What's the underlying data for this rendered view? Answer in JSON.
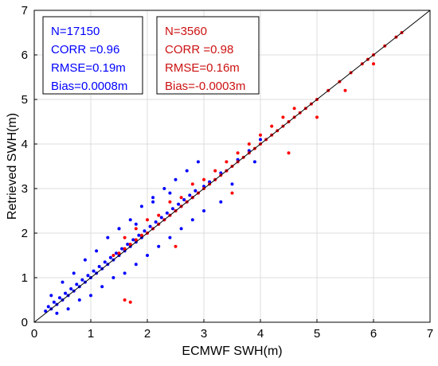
{
  "chart_data": {
    "type": "scatter",
    "title": "",
    "xlabel": "ECMWF SWH(m)",
    "ylabel": "Retrieved SWH(m)",
    "xlim": [
      0,
      7
    ],
    "ylim": [
      0,
      7
    ],
    "xticks": [
      0,
      1,
      2,
      3,
      4,
      5,
      6,
      7
    ],
    "yticks": [
      0,
      1,
      2,
      3,
      4,
      5,
      6,
      7
    ],
    "grid": true,
    "reference_line": {
      "x": [
        0,
        7
      ],
      "y": [
        0,
        7
      ],
      "color": "#000000"
    },
    "series": [
      {
        "color": "#0000ff",
        "stats": [
          "N=17150",
          "CORR =0.96",
          "RMSE=0.19m",
          "Bias=0.0008m"
        ],
        "x": [
          0.2,
          0.25,
          0.3,
          0.35,
          0.4,
          0.45,
          0.5,
          0.55,
          0.6,
          0.65,
          0.7,
          0.75,
          0.8,
          0.85,
          0.9,
          0.95,
          1.0,
          1.05,
          1.1,
          1.15,
          1.2,
          1.25,
          1.3,
          1.35,
          1.4,
          1.45,
          1.5,
          1.55,
          1.6,
          1.65,
          1.7,
          1.75,
          1.8,
          1.85,
          1.9,
          1.95,
          2.0,
          2.05,
          2.1,
          2.15,
          2.2,
          2.25,
          2.3,
          2.35,
          2.4,
          2.45,
          2.5,
          2.55,
          2.6,
          2.65,
          2.7,
          2.75,
          2.8,
          2.85,
          2.9,
          3.0,
          3.1,
          3.2,
          3.3,
          3.4,
          3.6,
          3.8,
          4.0,
          0.3,
          0.5,
          0.7,
          0.9,
          1.1,
          1.3,
          1.5,
          1.7,
          1.9,
          2.1,
          2.3,
          2.5,
          2.7,
          2.9,
          0.4,
          0.6,
          0.8,
          1.0,
          1.2,
          1.4,
          1.6,
          1.8,
          2.0,
          2.2,
          2.4,
          2.6,
          2.8,
          3.0,
          1.5,
          1.8,
          2.1,
          2.4,
          3.3,
          3.5,
          3.9
        ],
        "y": [
          0.25,
          0.35,
          0.3,
          0.45,
          0.4,
          0.55,
          0.5,
          0.65,
          0.6,
          0.75,
          0.7,
          0.85,
          0.8,
          0.95,
          0.9,
          1.05,
          1.0,
          1.15,
          1.1,
          1.25,
          1.2,
          1.35,
          1.3,
          1.45,
          1.4,
          1.55,
          1.5,
          1.65,
          1.6,
          1.75,
          1.7,
          1.85,
          1.8,
          1.95,
          1.9,
          2.05,
          2.0,
          2.15,
          2.1,
          2.25,
          2.2,
          2.35,
          2.3,
          2.45,
          2.4,
          2.55,
          2.5,
          2.65,
          2.6,
          2.75,
          2.7,
          2.85,
          2.8,
          2.95,
          2.9,
          3.05,
          3.15,
          3.2,
          3.35,
          3.4,
          3.65,
          3.85,
          4.1,
          0.6,
          0.9,
          1.1,
          1.4,
          1.6,
          1.9,
          2.1,
          2.3,
          2.6,
          2.8,
          3.0,
          3.2,
          3.4,
          3.6,
          0.2,
          0.3,
          0.5,
          0.6,
          0.8,
          1.0,
          1.1,
          1.3,
          1.5,
          1.7,
          1.9,
          2.1,
          2.3,
          2.5,
          2.1,
          2.2,
          2.7,
          2.9,
          2.7,
          3.1,
          3.6
        ]
      },
      {
        "color": "#ff0000",
        "stats": [
          "N=3560",
          "CORR =0.98",
          "RMSE=0.16m",
          "Bias=-0.0003m"
        ],
        "x": [
          1.4,
          1.5,
          1.6,
          1.7,
          1.8,
          1.9,
          2.0,
          2.1,
          2.2,
          2.3,
          2.4,
          2.5,
          2.6,
          2.7,
          2.8,
          2.9,
          3.0,
          3.1,
          3.2,
          3.3,
          3.4,
          3.5,
          3.6,
          3.7,
          3.8,
          3.9,
          4.0,
          4.1,
          4.2,
          4.3,
          4.4,
          4.5,
          4.6,
          4.7,
          4.8,
          4.9,
          5.0,
          5.2,
          5.4,
          5.6,
          5.8,
          5.9,
          6.0,
          6.2,
          6.4,
          6.5,
          1.6,
          1.8,
          2.0,
          2.2,
          2.4,
          2.6,
          2.8,
          3.0,
          3.2,
          3.4,
          3.6,
          3.8,
          4.0,
          4.2,
          4.4,
          4.6,
          5.0,
          5.5,
          6.0,
          1.6,
          1.7,
          2.5,
          3.5,
          4.5
        ],
        "y": [
          1.5,
          1.55,
          1.65,
          1.75,
          1.85,
          1.95,
          2.0,
          2.1,
          2.2,
          2.3,
          2.4,
          2.5,
          2.6,
          2.7,
          2.8,
          2.9,
          3.0,
          3.1,
          3.2,
          3.3,
          3.4,
          3.5,
          3.6,
          3.7,
          3.8,
          3.9,
          4.0,
          4.1,
          4.2,
          4.3,
          4.4,
          4.5,
          4.6,
          4.7,
          4.8,
          4.9,
          5.0,
          5.2,
          5.4,
          5.6,
          5.8,
          5.9,
          6.0,
          6.2,
          6.4,
          6.5,
          1.9,
          2.1,
          2.3,
          2.4,
          2.7,
          2.8,
          3.1,
          3.2,
          3.4,
          3.6,
          3.8,
          4.0,
          4.2,
          4.4,
          4.6,
          4.8,
          4.6,
          5.2,
          5.8,
          0.5,
          0.45,
          1.7,
          2.9,
          3.8
        ]
      }
    ]
  }
}
